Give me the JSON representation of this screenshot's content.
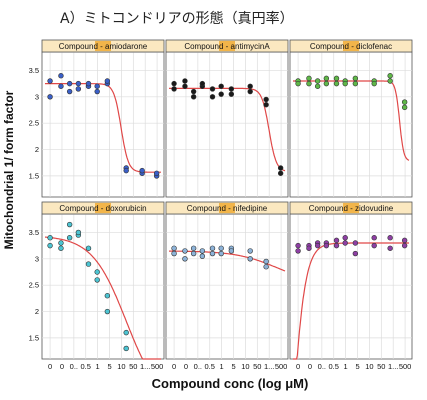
{
  "figure_title": "A）ミトコンドリアの形態（真円率）",
  "chart_data": {
    "type": "scatter",
    "title": "A）ミトコンドリアの形態（真円率）",
    "xlabel": "Compound conc (log μM)",
    "ylabel": "Mitochondrial 1/ form factor",
    "x_tick_labels": [
      "0",
      "0",
      "0..",
      "0.5",
      "1",
      "5",
      "10",
      "50",
      "1...",
      "500"
    ],
    "y_tick_labels": [
      "1.5",
      "2",
      "2.5",
      "3",
      "3.5"
    ],
    "ylim": [
      1.1,
      3.85
    ],
    "grid": true,
    "layout": "2x3 facets",
    "panels": [
      {
        "label": "Compound - amiodarone",
        "color": "#3a5fc8",
        "fit": {
          "top": 3.25,
          "bottom": 1.57,
          "center": 5.25,
          "steep": 4.0
        },
        "points": [
          {
            "x": 0.35,
            "y": 3.3
          },
          {
            "x": 0.35,
            "y": 3.0
          },
          {
            "x": 1.1,
            "y": 3.4
          },
          {
            "x": 1.1,
            "y": 3.2
          },
          {
            "x": 1.7,
            "y": 3.25
          },
          {
            "x": 1.7,
            "y": 3.1
          },
          {
            "x": 2.3,
            "y": 3.15
          },
          {
            "x": 2.3,
            "y": 3.25
          },
          {
            "x": 3.0,
            "y": 3.2
          },
          {
            "x": 3.0,
            "y": 3.25
          },
          {
            "x": 3.6,
            "y": 3.1
          },
          {
            "x": 3.6,
            "y": 3.2
          },
          {
            "x": 4.3,
            "y": 3.25
          },
          {
            "x": 4.3,
            "y": 3.3
          },
          {
            "x": 5.6,
            "y": 1.65
          },
          {
            "x": 5.6,
            "y": 1.6
          },
          {
            "x": 6.7,
            "y": 1.55
          },
          {
            "x": 6.7,
            "y": 1.6
          },
          {
            "x": 7.7,
            "y": 1.5
          },
          {
            "x": 7.7,
            "y": 1.55
          }
        ]
      },
      {
        "label": "Compound - antimycinA",
        "color": "#1a1a1a",
        "fit": {
          "top": 3.16,
          "bottom": 1.58,
          "center": 6.9,
          "steep": 4.0
        },
        "points": [
          {
            "x": 0.35,
            "y": 3.25
          },
          {
            "x": 0.35,
            "y": 3.15
          },
          {
            "x": 1.1,
            "y": 3.3
          },
          {
            "x": 1.1,
            "y": 3.2
          },
          {
            "x": 1.7,
            "y": 3.0
          },
          {
            "x": 1.7,
            "y": 3.1
          },
          {
            "x": 2.3,
            "y": 3.2
          },
          {
            "x": 2.3,
            "y": 3.25
          },
          {
            "x": 3.0,
            "y": 3.0
          },
          {
            "x": 3.0,
            "y": 3.15
          },
          {
            "x": 3.6,
            "y": 3.2
          },
          {
            "x": 3.6,
            "y": 3.05
          },
          {
            "x": 4.3,
            "y": 3.15
          },
          {
            "x": 4.3,
            "y": 3.05
          },
          {
            "x": 5.6,
            "y": 3.1
          },
          {
            "x": 5.6,
            "y": 3.2
          },
          {
            "x": 6.7,
            "y": 2.85
          },
          {
            "x": 6.7,
            "y": 2.95
          },
          {
            "x": 7.7,
            "y": 1.65
          },
          {
            "x": 7.7,
            "y": 1.55
          }
        ]
      },
      {
        "label": "Compound - diclofenac",
        "color": "#5fb848",
        "fit": {
          "top": 3.3,
          "bottom": 1.78,
          "center": 7.35,
          "steep": 7.0
        },
        "points": [
          {
            "x": 0.35,
            "y": 3.3
          },
          {
            "x": 0.35,
            "y": 3.25
          },
          {
            "x": 1.1,
            "y": 3.35
          },
          {
            "x": 1.1,
            "y": 3.25
          },
          {
            "x": 1.7,
            "y": 3.3
          },
          {
            "x": 1.7,
            "y": 3.2
          },
          {
            "x": 2.3,
            "y": 3.25
          },
          {
            "x": 2.3,
            "y": 3.35
          },
          {
            "x": 3.0,
            "y": 3.35
          },
          {
            "x": 3.0,
            "y": 3.25
          },
          {
            "x": 3.6,
            "y": 3.3
          },
          {
            "x": 3.6,
            "y": 3.25
          },
          {
            "x": 4.3,
            "y": 3.25
          },
          {
            "x": 4.3,
            "y": 3.35
          },
          {
            "x": 5.6,
            "y": 3.3
          },
          {
            "x": 5.6,
            "y": 3.25
          },
          {
            "x": 6.7,
            "y": 3.4
          },
          {
            "x": 6.7,
            "y": 3.3
          },
          {
            "x": 7.7,
            "y": 2.9
          },
          {
            "x": 7.7,
            "y": 2.8
          }
        ]
      },
      {
        "label": "Compound - doxorubicin",
        "color": "#4cc4d2",
        "fit": {
          "top": 3.44,
          "bottom": 0.2,
          "center": 5.6,
          "steep": 0.85
        },
        "points": [
          {
            "x": 0.35,
            "y": 3.4
          },
          {
            "x": 0.35,
            "y": 3.25
          },
          {
            "x": 1.1,
            "y": 3.3
          },
          {
            "x": 1.1,
            "y": 3.2
          },
          {
            "x": 1.7,
            "y": 3.4
          },
          {
            "x": 1.7,
            "y": 3.65
          },
          {
            "x": 2.3,
            "y": 3.45
          },
          {
            "x": 2.3,
            "y": 3.5
          },
          {
            "x": 3.0,
            "y": 3.2
          },
          {
            "x": 3.0,
            "y": 2.9
          },
          {
            "x": 3.6,
            "y": 2.6
          },
          {
            "x": 3.6,
            "y": 2.75
          },
          {
            "x": 4.3,
            "y": 2.3
          },
          {
            "x": 4.3,
            "y": 2.0
          },
          {
            "x": 5.6,
            "y": 1.6
          },
          {
            "x": 5.6,
            "y": 1.3
          }
        ]
      },
      {
        "label": "Compound - nifedipine",
        "color": "#8cb2d8",
        "fit": {
          "top": 3.15,
          "bottom": 2.5,
          "center": 7.5,
          "steep": 0.7
        },
        "points": [
          {
            "x": 0.35,
            "y": 3.2
          },
          {
            "x": 0.35,
            "y": 3.1
          },
          {
            "x": 1.1,
            "y": 3.15
          },
          {
            "x": 1.1,
            "y": 3.0
          },
          {
            "x": 1.7,
            "y": 3.1
          },
          {
            "x": 1.7,
            "y": 3.2
          },
          {
            "x": 2.3,
            "y": 3.05
          },
          {
            "x": 2.3,
            "y": 3.15
          },
          {
            "x": 3.0,
            "y": 3.2
          },
          {
            "x": 3.0,
            "y": 3.1
          },
          {
            "x": 3.6,
            "y": 3.2
          },
          {
            "x": 3.6,
            "y": 3.1
          },
          {
            "x": 4.3,
            "y": 3.2
          },
          {
            "x": 4.3,
            "y": 3.15
          },
          {
            "x": 5.6,
            "y": 3.15
          },
          {
            "x": 5.6,
            "y": 3.0
          },
          {
            "x": 6.7,
            "y": 2.95
          },
          {
            "x": 6.7,
            "y": 2.85
          }
        ]
      },
      {
        "label": "Compound - zidovudine",
        "color": "#8e3fa4",
        "fit": {
          "type": "rise",
          "top": 3.3,
          "bottom": -4.0,
          "center": -0.1,
          "steep": 0.45
        },
        "points": [
          {
            "x": 0.35,
            "y": 3.25
          },
          {
            "x": 0.35,
            "y": 3.15
          },
          {
            "x": 1.1,
            "y": 3.25
          },
          {
            "x": 1.1,
            "y": 3.2
          },
          {
            "x": 1.7,
            "y": 3.3
          },
          {
            "x": 1.7,
            "y": 3.25
          },
          {
            "x": 2.3,
            "y": 3.3
          },
          {
            "x": 2.3,
            "y": 3.25
          },
          {
            "x": 3.0,
            "y": 3.35
          },
          {
            "x": 3.0,
            "y": 3.25
          },
          {
            "x": 3.6,
            "y": 3.4
          },
          {
            "x": 3.6,
            "y": 3.3
          },
          {
            "x": 4.3,
            "y": 3.3
          },
          {
            "x": 4.3,
            "y": 3.1
          },
          {
            "x": 5.6,
            "y": 3.4
          },
          {
            "x": 5.6,
            "y": 3.25
          },
          {
            "x": 6.7,
            "y": 3.4
          },
          {
            "x": 6.7,
            "y": 3.2
          },
          {
            "x": 7.7,
            "y": 3.35
          },
          {
            "x": 7.7,
            "y": 3.25
          }
        ]
      }
    ]
  }
}
